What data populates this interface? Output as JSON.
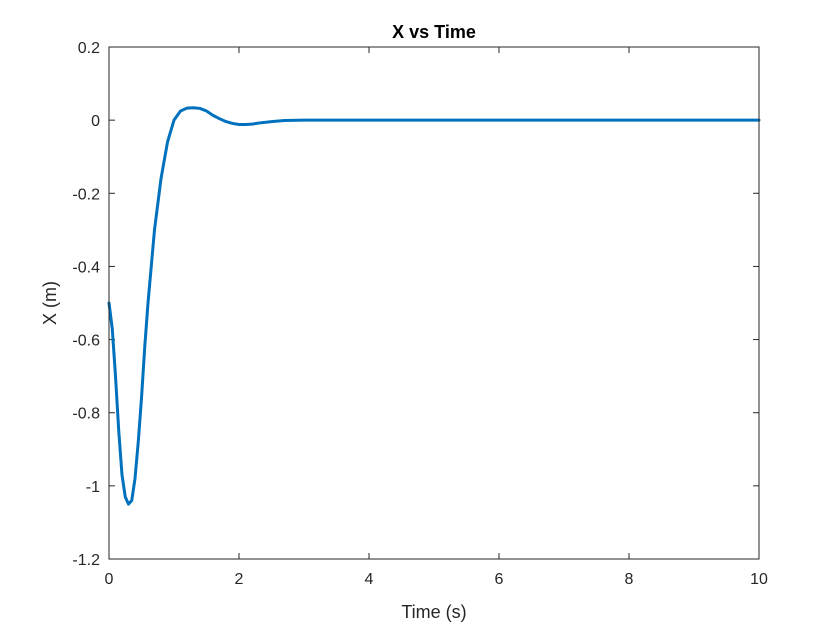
{
  "chart_data": {
    "type": "line",
    "title": "X vs Time",
    "xlabel": "Time (s)",
    "ylabel": "X (m)",
    "xlim": [
      0,
      10
    ],
    "ylim": [
      -1.2,
      0.2
    ],
    "xticks": [
      0,
      2,
      4,
      6,
      8,
      10
    ],
    "xtick_labels": [
      "0",
      "2",
      "4",
      "6",
      "8",
      "10"
    ],
    "yticks": [
      -1.2,
      -1,
      -0.8,
      -0.6,
      -0.4,
      -0.2,
      0,
      0.2
    ],
    "ytick_labels": [
      "-1.2",
      "-1",
      "-0.8",
      "-0.6",
      "-0.4",
      "-0.2",
      "0",
      "0.2"
    ],
    "grid": false,
    "line_color": "#0072BD",
    "series": [
      {
        "x": [
          0,
          0.05,
          0.1,
          0.15,
          0.2,
          0.25,
          0.3,
          0.35,
          0.4,
          0.45,
          0.5,
          0.55,
          0.6,
          0.7,
          0.8,
          0.9,
          1.0,
          1.1,
          1.2,
          1.3,
          1.4,
          1.5,
          1.6,
          1.7,
          1.8,
          1.9,
          2.0,
          2.1,
          2.2,
          2.3,
          2.5,
          2.7,
          3.0,
          3.5,
          4.0,
          5.0,
          6.0,
          7.0,
          8.0,
          9.0,
          10.0
        ],
        "values": [
          -0.5,
          -0.57,
          -0.7,
          -0.85,
          -0.97,
          -1.03,
          -1.05,
          -1.04,
          -0.98,
          -0.88,
          -0.76,
          -0.62,
          -0.5,
          -0.3,
          -0.16,
          -0.06,
          0.0,
          0.025,
          0.033,
          0.034,
          0.032,
          0.025,
          0.013,
          0.004,
          -0.004,
          -0.009,
          -0.012,
          -0.012,
          -0.011,
          -0.008,
          -0.004,
          -0.001,
          0.0,
          0.0,
          0.0,
          0.0,
          0.0,
          0.0,
          0.0,
          0.0,
          0.0
        ]
      }
    ]
  }
}
